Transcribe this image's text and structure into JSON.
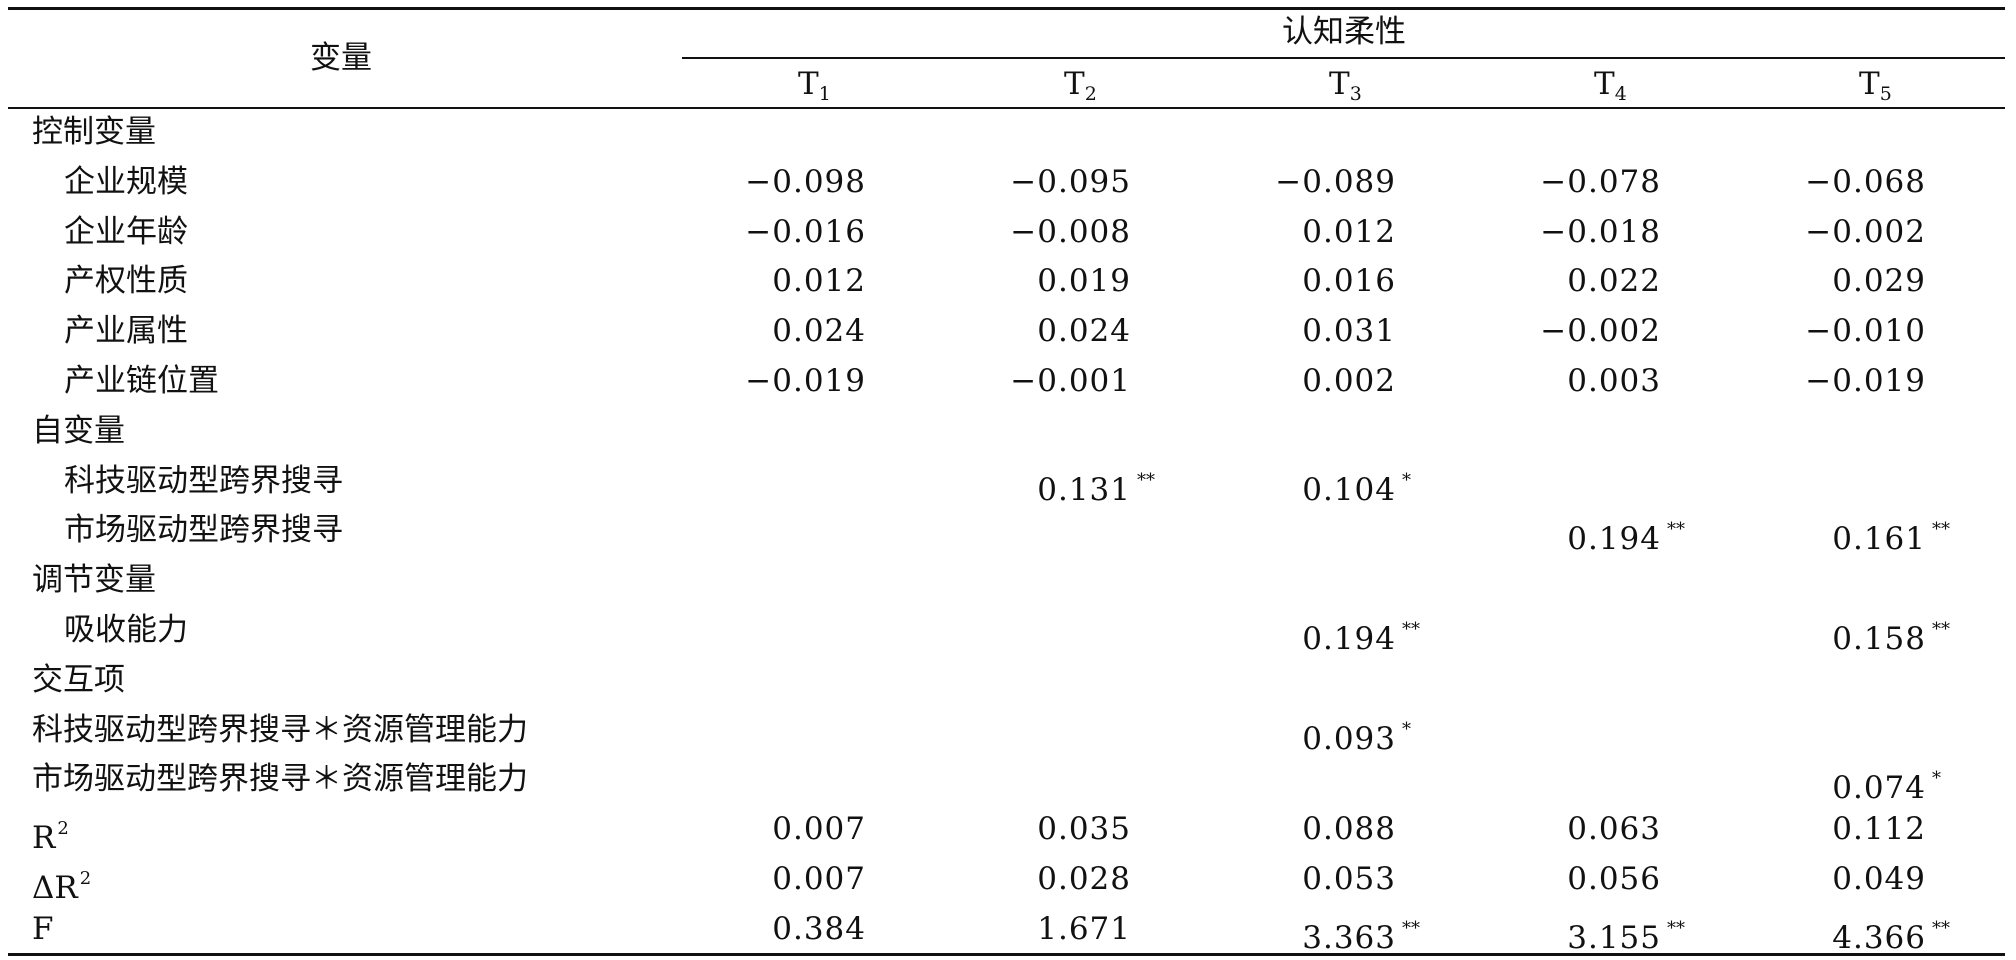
{
  "header": {
    "variable": "变量",
    "group": "认知柔性",
    "columns": [
      {
        "base": "T",
        "sub": "1"
      },
      {
        "base": "T",
        "sub": "2"
      },
      {
        "base": "T",
        "sub": "3"
      },
      {
        "base": "T",
        "sub": "4"
      },
      {
        "base": "T",
        "sub": "5"
      }
    ]
  },
  "rows": [
    {
      "label": "控制变量",
      "sup": "",
      "indent": false,
      "cells": []
    },
    {
      "label": "企业规模",
      "sup": "",
      "indent": true,
      "cells": [
        {
          "v": "−0.098",
          "s": ""
        },
        {
          "v": "−0.095",
          "s": ""
        },
        {
          "v": "−0.089",
          "s": ""
        },
        {
          "v": "−0.078",
          "s": ""
        },
        {
          "v": "−0.068",
          "s": ""
        }
      ]
    },
    {
      "label": "企业年龄",
      "sup": "",
      "indent": true,
      "cells": [
        {
          "v": "−0.016",
          "s": ""
        },
        {
          "v": "−0.008",
          "s": ""
        },
        {
          "v": "0.012",
          "s": ""
        },
        {
          "v": "−0.018",
          "s": ""
        },
        {
          "v": "−0.002",
          "s": ""
        }
      ]
    },
    {
      "label": "产权性质",
      "sup": "",
      "indent": true,
      "cells": [
        {
          "v": "0.012",
          "s": ""
        },
        {
          "v": "0.019",
          "s": ""
        },
        {
          "v": "0.016",
          "s": ""
        },
        {
          "v": "0.022",
          "s": ""
        },
        {
          "v": "0.029",
          "s": ""
        }
      ]
    },
    {
      "label": "产业属性",
      "sup": "",
      "indent": true,
      "cells": [
        {
          "v": "0.024",
          "s": ""
        },
        {
          "v": "0.024",
          "s": ""
        },
        {
          "v": "0.031",
          "s": ""
        },
        {
          "v": "−0.002",
          "s": ""
        },
        {
          "v": "−0.010",
          "s": ""
        }
      ]
    },
    {
      "label": "产业链位置",
      "sup": "",
      "indent": true,
      "cells": [
        {
          "v": "−0.019",
          "s": ""
        },
        {
          "v": "−0.001",
          "s": ""
        },
        {
          "v": "0.002",
          "s": ""
        },
        {
          "v": "0.003",
          "s": ""
        },
        {
          "v": "−0.019",
          "s": ""
        }
      ]
    },
    {
      "label": "自变量",
      "sup": "",
      "indent": false,
      "cells": []
    },
    {
      "label": "科技驱动型跨界搜寻",
      "sup": "",
      "indent": true,
      "cells": [
        {
          "v": "",
          "s": ""
        },
        {
          "v": "0.131",
          "s": "**"
        },
        {
          "v": "0.104",
          "s": "*"
        },
        {
          "v": "",
          "s": ""
        },
        {
          "v": "",
          "s": ""
        }
      ]
    },
    {
      "label": "市场驱动型跨界搜寻",
      "sup": "",
      "indent": true,
      "cells": [
        {
          "v": "",
          "s": ""
        },
        {
          "v": "",
          "s": ""
        },
        {
          "v": "",
          "s": ""
        },
        {
          "v": "0.194",
          "s": "**"
        },
        {
          "v": "0.161",
          "s": "**"
        }
      ]
    },
    {
      "label": "调节变量",
      "sup": "",
      "indent": false,
      "cells": []
    },
    {
      "label": "吸收能力",
      "sup": "",
      "indent": true,
      "cells": [
        {
          "v": "",
          "s": ""
        },
        {
          "v": "",
          "s": ""
        },
        {
          "v": "0.194",
          "s": "**"
        },
        {
          "v": "",
          "s": ""
        },
        {
          "v": "0.158",
          "s": "**"
        }
      ]
    },
    {
      "label": "交互项",
      "sup": "",
      "indent": false,
      "cells": []
    },
    {
      "label": "科技驱动型跨界搜寻＊资源管理能力",
      "sup": "",
      "indent": false,
      "cells": [
        {
          "v": "",
          "s": ""
        },
        {
          "v": "",
          "s": ""
        },
        {
          "v": "0.093",
          "s": "*"
        },
        {
          "v": "",
          "s": ""
        },
        {
          "v": "",
          "s": ""
        }
      ]
    },
    {
      "label": "市场驱动型跨界搜寻＊资源管理能力",
      "sup": "",
      "indent": false,
      "cells": [
        {
          "v": "",
          "s": ""
        },
        {
          "v": "",
          "s": ""
        },
        {
          "v": "",
          "s": ""
        },
        {
          "v": "",
          "s": ""
        },
        {
          "v": "0.074",
          "s": "*"
        }
      ]
    },
    {
      "label": "R",
      "sup": "2",
      "indent": false,
      "cells": [
        {
          "v": "0.007",
          "s": ""
        },
        {
          "v": "0.035",
          "s": ""
        },
        {
          "v": "0.088",
          "s": ""
        },
        {
          "v": "0.063",
          "s": ""
        },
        {
          "v": "0.112",
          "s": ""
        }
      ]
    },
    {
      "label": "ΔR",
      "sup": "2",
      "indent": false,
      "cells": [
        {
          "v": "0.007",
          "s": ""
        },
        {
          "v": "0.028",
          "s": ""
        },
        {
          "v": "0.053",
          "s": ""
        },
        {
          "v": "0.056",
          "s": ""
        },
        {
          "v": "0.049",
          "s": ""
        }
      ]
    },
    {
      "label": "F",
      "sup": "",
      "indent": false,
      "cells": [
        {
          "v": "0.384",
          "s": ""
        },
        {
          "v": "1.671",
          "s": ""
        },
        {
          "v": "3.363",
          "s": "**"
        },
        {
          "v": "3.155",
          "s": "**"
        },
        {
          "v": "4.366",
          "s": "**"
        }
      ]
    }
  ]
}
